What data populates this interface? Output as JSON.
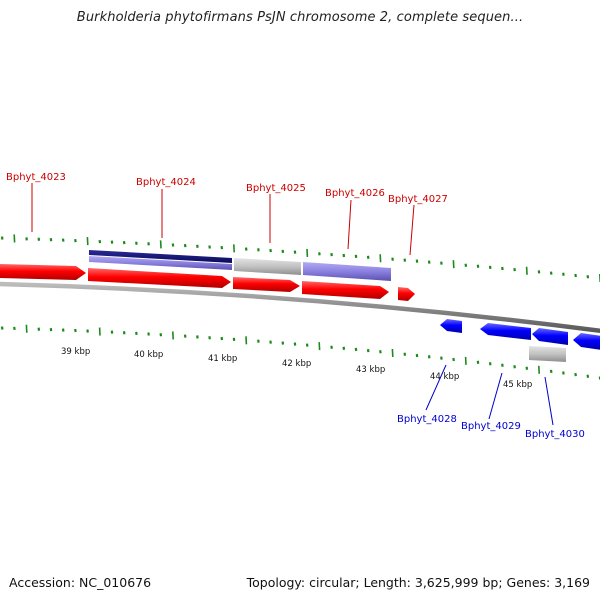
{
  "header": {
    "title": "Burkholderia phytofirmans PsJN chromosome 2, complete sequen..."
  },
  "footer": {
    "accession": "Accession: NC_010676",
    "summary": "Topology: circular; Length: 3,625,999 bp; Genes: 3,169"
  },
  "colors": {
    "forward_gene": "#ff0000",
    "forward_label": "#cc0000",
    "reverse_gene": "#0000ff",
    "reverse_label": "#0000cc",
    "dark_feature": "#14147a",
    "light_feature": "#8a80e0",
    "grey_feature": "#bdbdbd",
    "backbone": "#8a8a8a",
    "tick": "#1e8a1e"
  },
  "gene_labels_top": [
    {
      "id": "Bphyt_4023"
    },
    {
      "id": "Bphyt_4024"
    },
    {
      "id": "Bphyt_4025"
    },
    {
      "id": "Bphyt_4026"
    },
    {
      "id": "Bphyt_4027"
    }
  ],
  "gene_labels_bottom": [
    {
      "id": "Bphyt_4028"
    },
    {
      "id": "Bphyt_4029"
    },
    {
      "id": "Bphyt_4030"
    }
  ],
  "kbp_labels": [
    "39 kbp",
    "40 kbp",
    "41 kbp",
    "42 kbp",
    "43 kbp",
    "44 kbp",
    "45 kbp"
  ]
}
